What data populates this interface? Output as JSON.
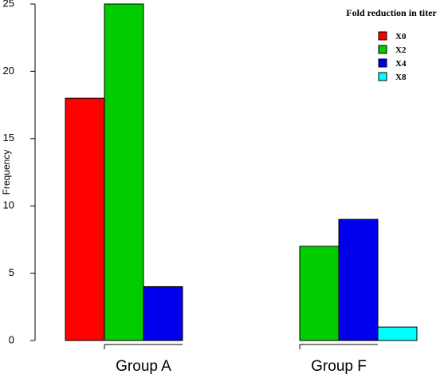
{
  "chart_data": {
    "type": "bar",
    "categories": [
      "Group A",
      "Group F"
    ],
    "series": [
      {
        "name": "X0",
        "values": [
          18,
          0
        ],
        "color": "#ff0000"
      },
      {
        "name": "X2",
        "values": [
          25,
          7
        ],
        "color": "#00cc00"
      },
      {
        "name": "X4",
        "values": [
          4,
          9
        ],
        "color": "#0000ee"
      },
      {
        "name": "X8",
        "values": [
          0,
          1
        ],
        "color": "#00ffff"
      }
    ],
    "ylabel": "Frequency",
    "ylim": [
      0,
      25
    ],
    "yticks": [
      0,
      5,
      10,
      15,
      20,
      25
    ],
    "legend": {
      "title": "Fold reduction in titer",
      "position": "top-right"
    },
    "grid": false
  }
}
